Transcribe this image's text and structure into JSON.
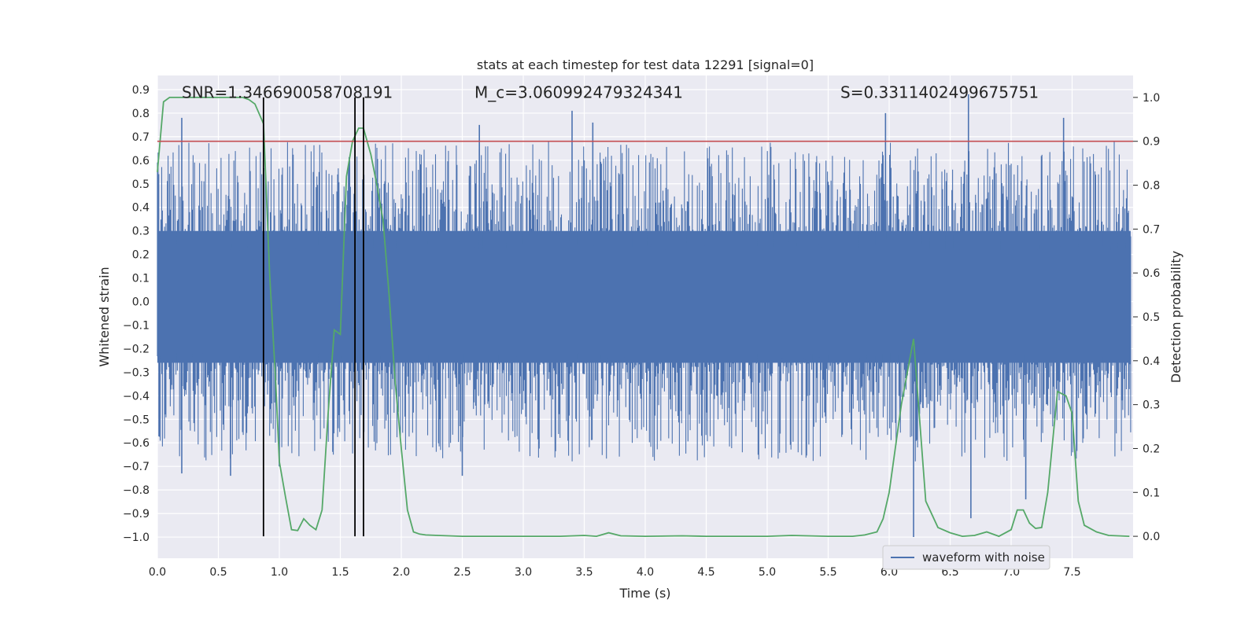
{
  "chart_data": {
    "type": "line",
    "title": "stats at each timestep for test data 12291 [signal=0]",
    "xlabel": "Time (s)",
    "ylabel": "Whitened strain",
    "y2label": "Detection probability",
    "xlim": [
      0.0,
      8.0
    ],
    "ylim": [
      -1.09,
      0.96
    ],
    "y2lim": [
      -0.05,
      1.05
    ],
    "xticks": [
      "0.0",
      "0.5",
      "1.0",
      "1.5",
      "2.0",
      "2.5",
      "3.0",
      "3.5",
      "4.0",
      "4.5",
      "5.0",
      "5.5",
      "6.0",
      "6.5",
      "7.0",
      "7.5"
    ],
    "yticks": [
      "0.9",
      "0.8",
      "0.7",
      "0.6",
      "0.5",
      "0.4",
      "0.3",
      "0.2",
      "0.1",
      "0.0",
      "-0.1",
      "-0.2",
      "-0.3",
      "-0.4",
      "-0.5",
      "-0.6",
      "-0.7",
      "-0.8",
      "-0.9",
      "-1.0"
    ],
    "y2ticks": [
      "1.0",
      "0.9",
      "0.8",
      "0.7",
      "0.6",
      "0.5",
      "0.4",
      "0.3",
      "0.2",
      "0.1",
      "0.0"
    ],
    "annotations": [
      {
        "id": "snr",
        "text": "SNR=1.346690058708191",
        "x": 0.2
      },
      {
        "id": "mc",
        "text": "M_c=3.060992479324341",
        "x": 2.6
      },
      {
        "id": "s",
        "text": "S=0.3311402499675751",
        "x": 5.6
      }
    ],
    "threshold_probability": 0.9,
    "vertical_markers": [
      0.87,
      1.62,
      1.69
    ],
    "legend": {
      "label": "waveform with noise",
      "loc": "lower right"
    },
    "series": [
      {
        "name": "waveform with noise",
        "axis": "left",
        "kind": "noise",
        "color": "#4c72b0",
        "x_range": [
          0.0,
          7.98
        ],
        "spikes": [
          {
            "x": 0.2,
            "y": 0.78
          },
          {
            "x": 0.2,
            "y": -0.73
          },
          {
            "x": 0.6,
            "y": -0.74
          },
          {
            "x": 1.0,
            "y": -0.7
          },
          {
            "x": 2.5,
            "y": -0.74
          },
          {
            "x": 2.64,
            "y": 0.75
          },
          {
            "x": 3.4,
            "y": 0.81
          },
          {
            "x": 3.57,
            "y": 0.76
          },
          {
            "x": 5.97,
            "y": 0.8
          },
          {
            "x": 6.2,
            "y": -1.0
          },
          {
            "x": 6.65,
            "y": 0.88
          },
          {
            "x": 6.67,
            "y": -0.92
          },
          {
            "x": 7.12,
            "y": -0.84
          },
          {
            "x": 7.43,
            "y": 0.78
          }
        ]
      },
      {
        "name": "",
        "axis": "right",
        "kind": "line",
        "color": "#55a868",
        "x": [
          0.0,
          0.05,
          0.1,
          0.2,
          0.3,
          0.4,
          0.5,
          0.6,
          0.7,
          0.75,
          0.8,
          0.87,
          0.92,
          0.97,
          1.0,
          1.05,
          1.1,
          1.15,
          1.2,
          1.25,
          1.3,
          1.35,
          1.4,
          1.45,
          1.5,
          1.55,
          1.6,
          1.65,
          1.69,
          1.75,
          1.8,
          1.85,
          1.9,
          1.95,
          2.0,
          2.05,
          2.1,
          2.15,
          2.2,
          2.3,
          2.5,
          3.0,
          3.3,
          3.5,
          3.6,
          3.7,
          3.8,
          4.0,
          4.3,
          4.5,
          5.0,
          5.2,
          5.5,
          5.7,
          5.8,
          5.9,
          5.95,
          6.0,
          6.1,
          6.2,
          6.3,
          6.4,
          6.5,
          6.6,
          6.7,
          6.8,
          6.9,
          7.0,
          7.05,
          7.1,
          7.15,
          7.2,
          7.25,
          7.3,
          7.38,
          7.45,
          7.5,
          7.55,
          7.6,
          7.7,
          7.8,
          7.97
        ],
        "values": [
          0.83,
          0.99,
          1.0,
          1.0,
          1.0,
          1.0,
          1.0,
          1.0,
          1.0,
          0.995,
          0.985,
          0.94,
          0.6,
          0.35,
          0.17,
          0.09,
          0.015,
          0.013,
          0.04,
          0.025,
          0.015,
          0.06,
          0.28,
          0.47,
          0.46,
          0.82,
          0.9,
          0.93,
          0.93,
          0.87,
          0.8,
          0.72,
          0.55,
          0.35,
          0.2,
          0.06,
          0.01,
          0.005,
          0.003,
          0.002,
          0.0,
          0.0,
          0.0,
          0.002,
          0.0,
          0.008,
          0.001,
          0.0,
          0.001,
          0.0,
          0.0,
          0.002,
          0.0,
          0.0,
          0.003,
          0.01,
          0.04,
          0.1,
          0.3,
          0.45,
          0.08,
          0.02,
          0.008,
          0.0,
          0.002,
          0.01,
          0.0,
          0.015,
          0.06,
          0.06,
          0.03,
          0.018,
          0.02,
          0.1,
          0.33,
          0.32,
          0.28,
          0.08,
          0.025,
          0.01,
          0.002,
          0.0
        ]
      }
    ]
  }
}
